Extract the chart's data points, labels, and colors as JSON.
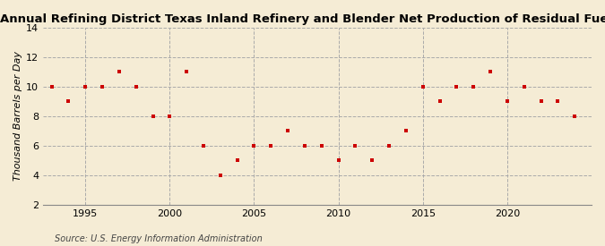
{
  "title": "Annual Refining District Texas Inland Refinery and Blender Net Production of Residual Fuel Oil",
  "ylabel": "Thousand Barrels per Day",
  "source": "Source: U.S. Energy Information Administration",
  "years": [
    1993,
    1994,
    1995,
    1996,
    1997,
    1998,
    1999,
    2000,
    2001,
    2002,
    2003,
    2004,
    2005,
    2006,
    2007,
    2008,
    2009,
    2010,
    2011,
    2012,
    2013,
    2014,
    2015,
    2016,
    2017,
    2018,
    2019,
    2020,
    2021,
    2022,
    2023,
    2024
  ],
  "values": [
    10,
    9,
    10,
    10,
    11,
    10,
    8,
    8,
    11,
    6,
    4,
    5,
    6,
    6,
    7,
    6,
    6,
    5,
    6,
    5,
    6,
    7,
    10,
    9,
    10,
    10,
    11,
    9,
    10,
    9,
    9,
    8
  ],
  "marker_color": "#cc0000",
  "background_color": "#f5ecd5",
  "grid_color": "#aaaaaa",
  "ylim": [
    2,
    14
  ],
  "yticks": [
    2,
    4,
    6,
    8,
    10,
    12,
    14
  ],
  "xlim": [
    1992.5,
    2025
  ],
  "xticks": [
    1995,
    2000,
    2005,
    2010,
    2015,
    2020
  ],
  "title_fontsize": 9.5,
  "ylabel_fontsize": 8,
  "source_fontsize": 7,
  "tick_fontsize": 8
}
